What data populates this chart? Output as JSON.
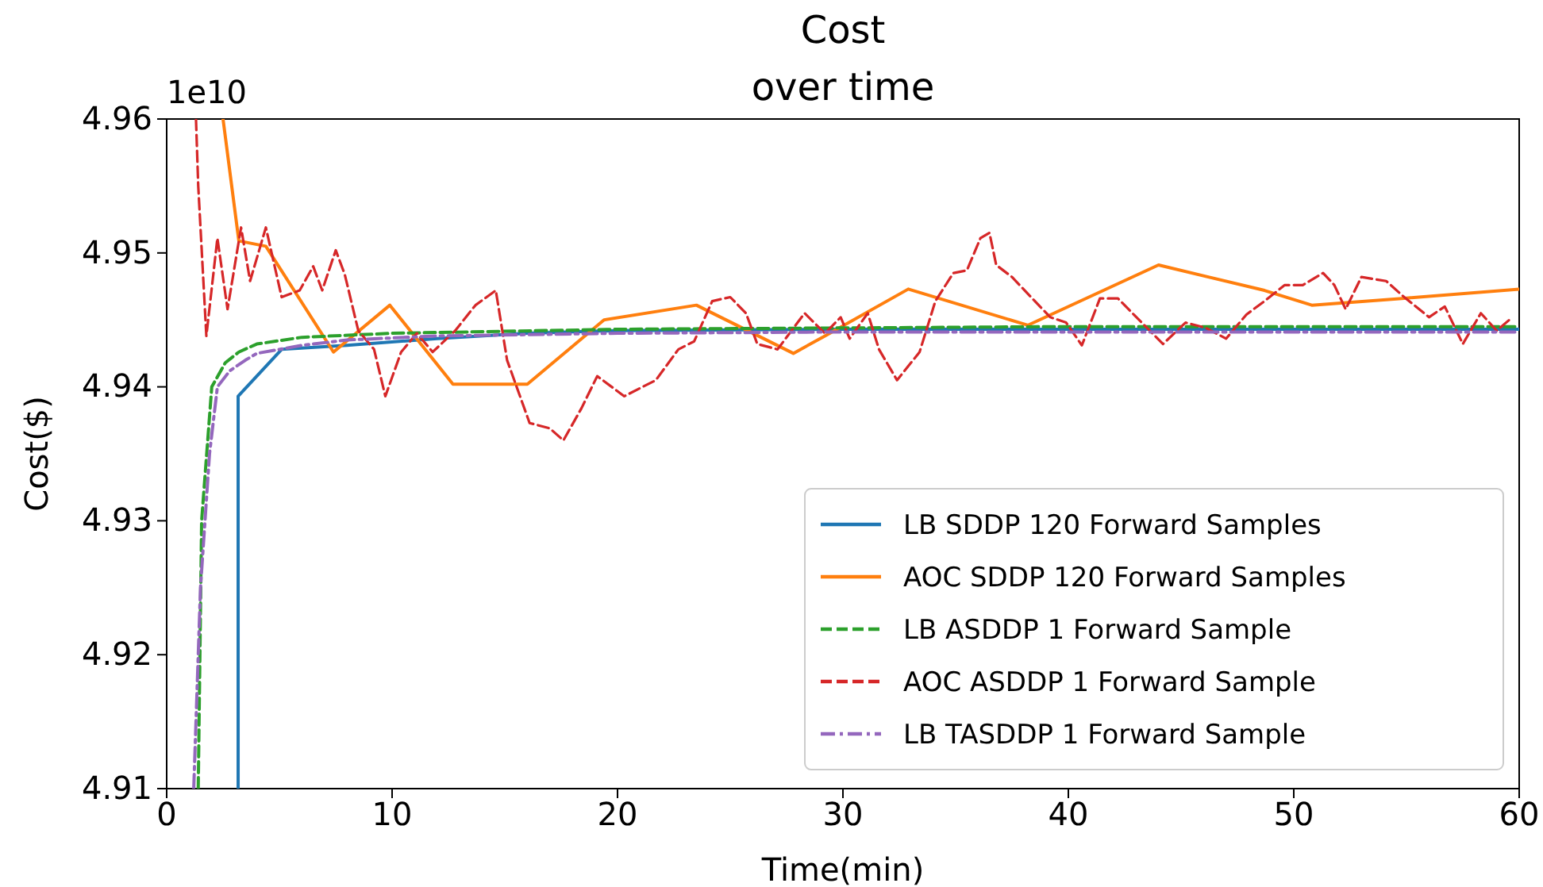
{
  "chart_data": {
    "type": "line",
    "title": "Cost\nover time",
    "xlabel": "Time(min)",
    "ylabel": "Cost($)",
    "annotations": [
      "1e10"
    ],
    "xlim": [
      0,
      60
    ],
    "xticks": [
      0,
      10,
      20,
      30,
      40,
      50,
      60
    ],
    "ylim": [
      4.91,
      4.96
    ],
    "yticks": [
      4.91,
      4.92,
      4.93,
      4.94,
      4.95,
      4.96
    ],
    "grid": false,
    "legend": "bottom right",
    "series": [
      {
        "name": "LB SDDP 120 Forward Samples",
        "color": "#1f77b4",
        "line_style": "solid",
        "x": [
          3.17,
          3.17,
          5.1,
          8,
          12,
          16,
          20,
          30,
          40,
          50,
          60
        ],
        "values": [
          4.91,
          4.9393,
          4.9428,
          4.9431,
          4.9436,
          4.944,
          4.9442,
          4.9443,
          4.9443,
          4.9443,
          4.9443
        ]
      },
      {
        "name": "AOC SDDP 120 Forward Samples",
        "color": "#ff7f0e",
        "line_style": "solid",
        "x": [
          2.5,
          3.2,
          4.4,
          7.4,
          9.9,
          12.7,
          16,
          19.4,
          23.5,
          27.8,
          29.2,
          32.9,
          38.2,
          44,
          48.7,
          50.8,
          54.8,
          60
        ],
        "values": [
          4.96,
          4.9509,
          4.9505,
          4.9426,
          4.9461,
          4.9402,
          4.9402,
          4.945,
          4.9461,
          4.9425,
          4.9438,
          4.9473,
          4.9446,
          4.9491,
          4.9472,
          4.9461,
          4.9466,
          4.9473
        ]
      },
      {
        "name": "LB ASDDP 1 Forward Sample",
        "color": "#2ca02c",
        "line_style": "dashed",
        "x": [
          1.4,
          1.55,
          2.0,
          2.6,
          3.2,
          4,
          6,
          10,
          20,
          30,
          40,
          50,
          60
        ],
        "values": [
          4.91,
          4.93,
          4.94,
          4.9418,
          4.9426,
          4.9432,
          4.9437,
          4.944,
          4.9443,
          4.9444,
          4.9445,
          4.9445,
          4.9445
        ]
      },
      {
        "name": "AOC ASDDP 1 Forward Sample",
        "color": "#d62728",
        "line_style": "dashed",
        "x": [
          1.3,
          1.4,
          1.76,
          2.25,
          2.7,
          3.3,
          3.7,
          4.4,
          5.1,
          5.9,
          6.5,
          6.9,
          7.5,
          7.9,
          8.5,
          9.2,
          9.7,
          10.4,
          11.1,
          11.8,
          12.8,
          13.7,
          14.6,
          15.1,
          16.1,
          17.0,
          17.6,
          18.4,
          19.1,
          20.3,
          21.7,
          22.7,
          23.4,
          24.2,
          25.0,
          25.7,
          26.2,
          27.1,
          28.3,
          29.2,
          29.9,
          30.3,
          31.1,
          31.6,
          32.4,
          33.4,
          34.1,
          34.9,
          35.5,
          36.1,
          36.5,
          36.8,
          37.5,
          38.4,
          39.2,
          39.9,
          40.6,
          41.4,
          42.2,
          42.9,
          44.2,
          45.2,
          46.1,
          47.0,
          47.9,
          48.7,
          49.6,
          50.4,
          51.3,
          51.8,
          52.3,
          53.0,
          54.1,
          54.9,
          56.0,
          56.7,
          57.5,
          58.3,
          59.0,
          59.7
        ],
        "values": [
          4.96,
          4.955,
          4.9438,
          4.9511,
          4.9458,
          4.9519,
          4.9479,
          4.9519,
          4.9467,
          4.9472,
          4.949,
          4.9472,
          4.9502,
          4.9484,
          4.9442,
          4.9428,
          4.9393,
          4.9426,
          4.944,
          4.9426,
          4.9442,
          4.9461,
          4.9472,
          4.942,
          4.9373,
          4.9369,
          4.936,
          4.9384,
          4.9408,
          4.9393,
          4.9405,
          4.9428,
          4.9434,
          4.9464,
          4.9467,
          4.9455,
          4.9432,
          4.9428,
          4.9455,
          4.944,
          4.9452,
          4.9436,
          4.9455,
          4.9428,
          4.9405,
          4.9426,
          4.9464,
          4.9485,
          4.9487,
          4.9511,
          4.9515,
          4.9491,
          4.9482,
          4.9466,
          4.9452,
          4.9448,
          4.9431,
          4.9466,
          4.9466,
          4.9454,
          4.9432,
          4.9448,
          4.9444,
          4.9436,
          4.9454,
          4.9464,
          4.9476,
          4.9476,
          4.9485,
          4.9476,
          4.9458,
          4.9482,
          4.9479,
          4.9467,
          4.9452,
          4.946,
          4.9432,
          4.9455,
          4.9442,
          4.9452
        ]
      },
      {
        "name": "LB TASDDP 1 Forward Sample",
        "color": "#9467bd",
        "line_style": "dashdot",
        "x": [
          1.2,
          1.5,
          1.9,
          2.25,
          2.8,
          3.5,
          4,
          6,
          8,
          12,
          20,
          30,
          40,
          50,
          60
        ],
        "values": [
          4.91,
          4.925,
          4.935,
          4.94,
          4.9412,
          4.942,
          4.9425,
          4.9431,
          4.9435,
          4.9438,
          4.944,
          4.9441,
          4.9441,
          4.9441,
          4.9441
        ]
      }
    ]
  }
}
